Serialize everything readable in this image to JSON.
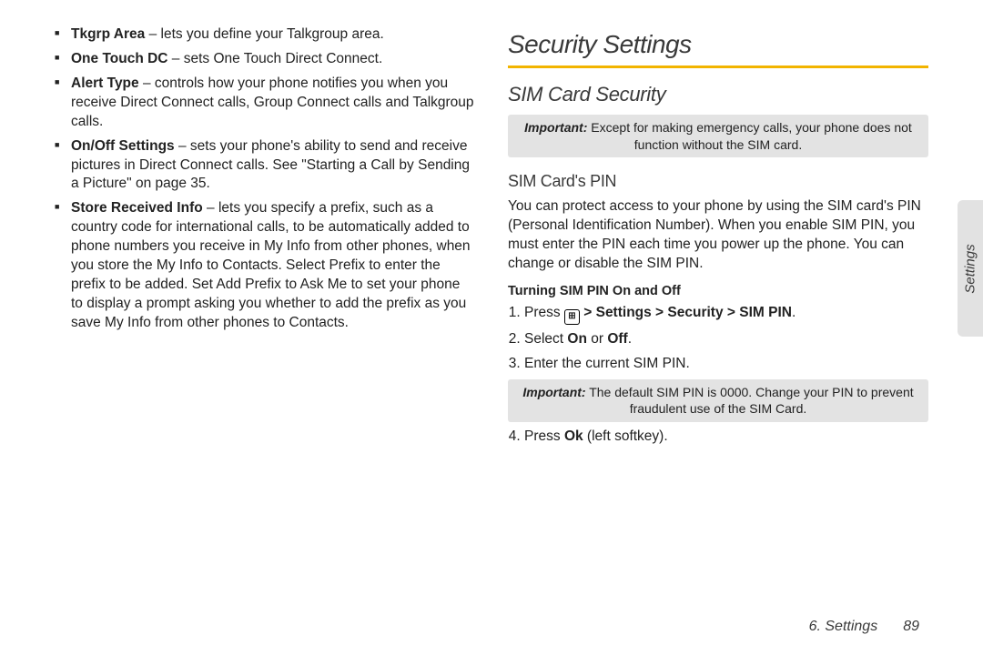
{
  "colors": {
    "accent_rule": "#f2b400",
    "note_bg": "#e3e3e3",
    "text": "#222222",
    "heading": "#3a3a3a",
    "tab_bg": "#e2e2e2"
  },
  "left": {
    "bullets": [
      {
        "title": "Tkgrp Area",
        "desc": " – lets you define your Talkgroup area."
      },
      {
        "title": "One Touch DC",
        "desc": " – sets One Touch Direct Connect."
      },
      {
        "title": "Alert Type",
        "desc": " – controls how your phone notifies you when you receive Direct Connect calls, Group Connect calls and Talkgroup calls."
      },
      {
        "title": "On/Off Settings",
        "desc": " – sets your phone's ability to send and receive pictures in Direct Connect calls. See \"Starting a Call by Sending a Picture\" on page 35."
      },
      {
        "title": "Store Received Info",
        "desc": " – lets you specify a prefix, such as a country code for international calls, to be automatically added to phone numbers you receive in My Info from other phones, when you store the My Info to Contacts. Select Prefix to enter the prefix to be added. Set Add Prefix to Ask Me to set your phone to display a prompt asking you whether to add the prefix as you save My Info from other phones to Contacts."
      }
    ]
  },
  "right": {
    "h1": "Security Settings",
    "h2": "SIM Card Security",
    "note1": {
      "imp": "Important:",
      "text": " Except for making emergency calls, your phone does not function without the SIM card."
    },
    "h3": "SIM Card's PIN",
    "p1": "You can protect access to your phone by using the SIM card's PIN (Personal Identification Number). When you enable SIM PIN, you must enter the PIN each time you power up the phone. You can change or disable the SIM PIN.",
    "sub": "Turning SIM PIN On and Off",
    "steps": {
      "s1a": "Press ",
      "s1b": " > Settings > Security > SIM PIN",
      "s1c": ".",
      "s2a": "Select ",
      "s2b_on": "On",
      "s2b_or": " or ",
      "s2b_off": "Off",
      "s2c": ".",
      "s3": "Enter the current SIM PIN.",
      "s4a": "Press ",
      "s4b": "Ok",
      "s4c": " (left softkey)."
    },
    "note2": {
      "imp": "Important:",
      "text": " The default SIM PIN is 0000. Change your PIN to prevent fraudulent use of the SIM Card."
    }
  },
  "sideTab": "Settings",
  "footer": {
    "section": "6. Settings",
    "page": "89"
  },
  "keyIconGlyph": "⊞"
}
